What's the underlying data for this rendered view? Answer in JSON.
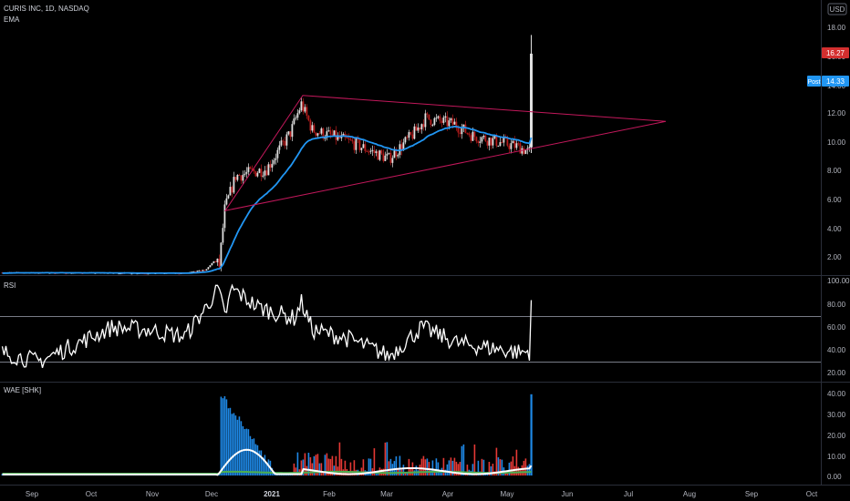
{
  "header": {
    "symbol_line": "CURIS INC, 1D, NASDAQ",
    "indicator": "EMA",
    "currency": "USD"
  },
  "panes": {
    "rsi_label": "RSI",
    "wae_label": "WAE [SHK]"
  },
  "badges": {
    "last_price": "16.27",
    "post_label": "Post",
    "post_price": "14.33"
  },
  "colors": {
    "up": "#e0e0e0",
    "down": "#b71c1c",
    "ema": "#2196f3",
    "pattern": "#c2185b",
    "rsi": "#ffffff",
    "wae_up": "#1e88e5",
    "wae_down": "#e53935",
    "wae_deadzone": "#4caf50",
    "last_badge": "#d32f2f",
    "post_badge": "#2196f3"
  },
  "chart_data": [
    {
      "type": "candlestick",
      "title": "CURIS INC, 1D, NASDAQ",
      "price_axis": [
        "18.00",
        "16.00",
        "14.00",
        "12.00",
        "10.00",
        "8.00",
        "6.00",
        "4.00",
        "2.00"
      ],
      "time_axis": [
        "Sep",
        "Oct",
        "Nov",
        "Dec",
        "2021",
        "Feb",
        "Mar",
        "Apr",
        "May",
        "Jun",
        "Jul",
        "Aug",
        "Sep",
        "Oct"
      ],
      "ylim": [
        0.9,
        19.2
      ],
      "overlays": [
        "EMA",
        "symmetrical triangle"
      ]
    },
    {
      "type": "line",
      "title": "RSI",
      "y_axis": [
        "100.00",
        "80.00",
        "60.00",
        "40.00",
        "20.00"
      ],
      "ylim": [
        14,
        104
      ],
      "bands": [
        70,
        30
      ]
    },
    {
      "type": "bar",
      "title": "WAE [SHK]",
      "y_axis": [
        "40.00",
        "30.00",
        "20.00",
        "10.00",
        "0.00"
      ],
      "ylim": [
        -2,
        46
      ]
    }
  ]
}
